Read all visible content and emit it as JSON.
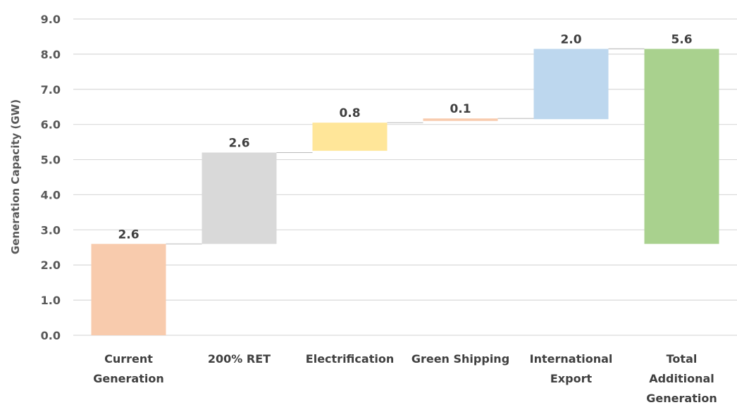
{
  "chart_data": {
    "type": "bar",
    "subtype": "waterfall",
    "ylabel": "Generation Capacity (GW)",
    "ylim": [
      0,
      9
    ],
    "yticks": [
      "0.0",
      "1.0",
      "2.0",
      "3.0",
      "4.0",
      "5.0",
      "6.0",
      "7.0",
      "8.0",
      "9.0"
    ],
    "grid": true,
    "categories": [
      [
        "Current",
        "Generation"
      ],
      [
        "200% RET"
      ],
      [
        "Electrification"
      ],
      [
        "Green Shipping"
      ],
      [
        "International",
        "Export"
      ],
      [
        "Total",
        "Additional",
        "Generation"
      ]
    ],
    "bars": [
      {
        "base": 0.0,
        "value": 2.6,
        "label": "2.6",
        "color": "#f8cbad"
      },
      {
        "base": 2.6,
        "value": 2.6,
        "label": "2.6",
        "color": "#d9d9d9"
      },
      {
        "base": 5.25,
        "value": 0.8,
        "label": "0.8",
        "color": "#ffe699"
      },
      {
        "base": 6.1,
        "value": 0.07,
        "label": "0.1",
        "color": "#f8cbad"
      },
      {
        "base": 6.15,
        "value": 2.0,
        "label": "2.0",
        "color": "#bdd7ee"
      },
      {
        "base": 2.6,
        "value": 5.55,
        "label": "5.6",
        "color": "#a9d18e"
      }
    ]
  }
}
